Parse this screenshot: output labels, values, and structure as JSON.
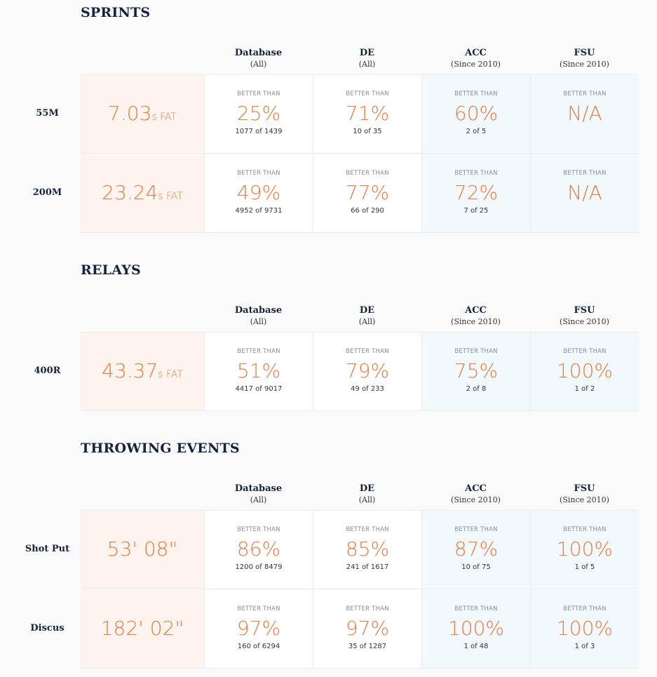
{
  "better_than_label": "BETTER THAN",
  "columns": [
    {
      "name": "Database",
      "sub": "(All)"
    },
    {
      "name": "DE",
      "sub": "(All)"
    },
    {
      "name": "ACC",
      "sub": "(Since 2010)"
    },
    {
      "name": "FSU",
      "sub": "(Since 2010)"
    }
  ],
  "sections": [
    {
      "title": "SPRINTS",
      "rows": [
        {
          "event": "55M",
          "mark": "7.03",
          "unit": "s FAT",
          "cells": [
            {
              "pct": "25%",
              "count": "1077 of 1439"
            },
            {
              "pct": "71%",
              "count": "10 of 35"
            },
            {
              "pct": "60%",
              "count": "2 of 5"
            },
            {
              "pct": "N/A",
              "count": ""
            }
          ]
        },
        {
          "event": "200M",
          "mark": "23.24",
          "unit": "s FAT",
          "cells": [
            {
              "pct": "49%",
              "count": "4952 of 9731"
            },
            {
              "pct": "77%",
              "count": "66 of 290"
            },
            {
              "pct": "72%",
              "count": "7 of 25"
            },
            {
              "pct": "N/A",
              "count": ""
            }
          ]
        }
      ]
    },
    {
      "title": "RELAYS",
      "rows": [
        {
          "event": "400R",
          "mark": "43.37",
          "unit": "s FAT",
          "cells": [
            {
              "pct": "51%",
              "count": "4417 of 9017"
            },
            {
              "pct": "79%",
              "count": "49 of 233"
            },
            {
              "pct": "75%",
              "count": "2 of 8"
            },
            {
              "pct": "100%",
              "count": "1 of 2"
            }
          ]
        }
      ]
    },
    {
      "title": "THROWING EVENTS",
      "rows": [
        {
          "event": "Shot Put",
          "mark": "53' 08\"",
          "unit": "",
          "cells": [
            {
              "pct": "86%",
              "count": "1200 of 8479"
            },
            {
              "pct": "85%",
              "count": "241 of 1617"
            },
            {
              "pct": "87%",
              "count": "10 of 75"
            },
            {
              "pct": "100%",
              "count": "1 of 5"
            }
          ]
        },
        {
          "event": "Discus",
          "mark": "182' 02\"",
          "unit": "",
          "cells": [
            {
              "pct": "97%",
              "count": "160 of 6294"
            },
            {
              "pct": "97%",
              "count": "35 of 1287"
            },
            {
              "pct": "100%",
              "count": "1 of 48"
            },
            {
              "pct": "100%",
              "count": "1 of 3"
            }
          ]
        }
      ]
    }
  ]
}
